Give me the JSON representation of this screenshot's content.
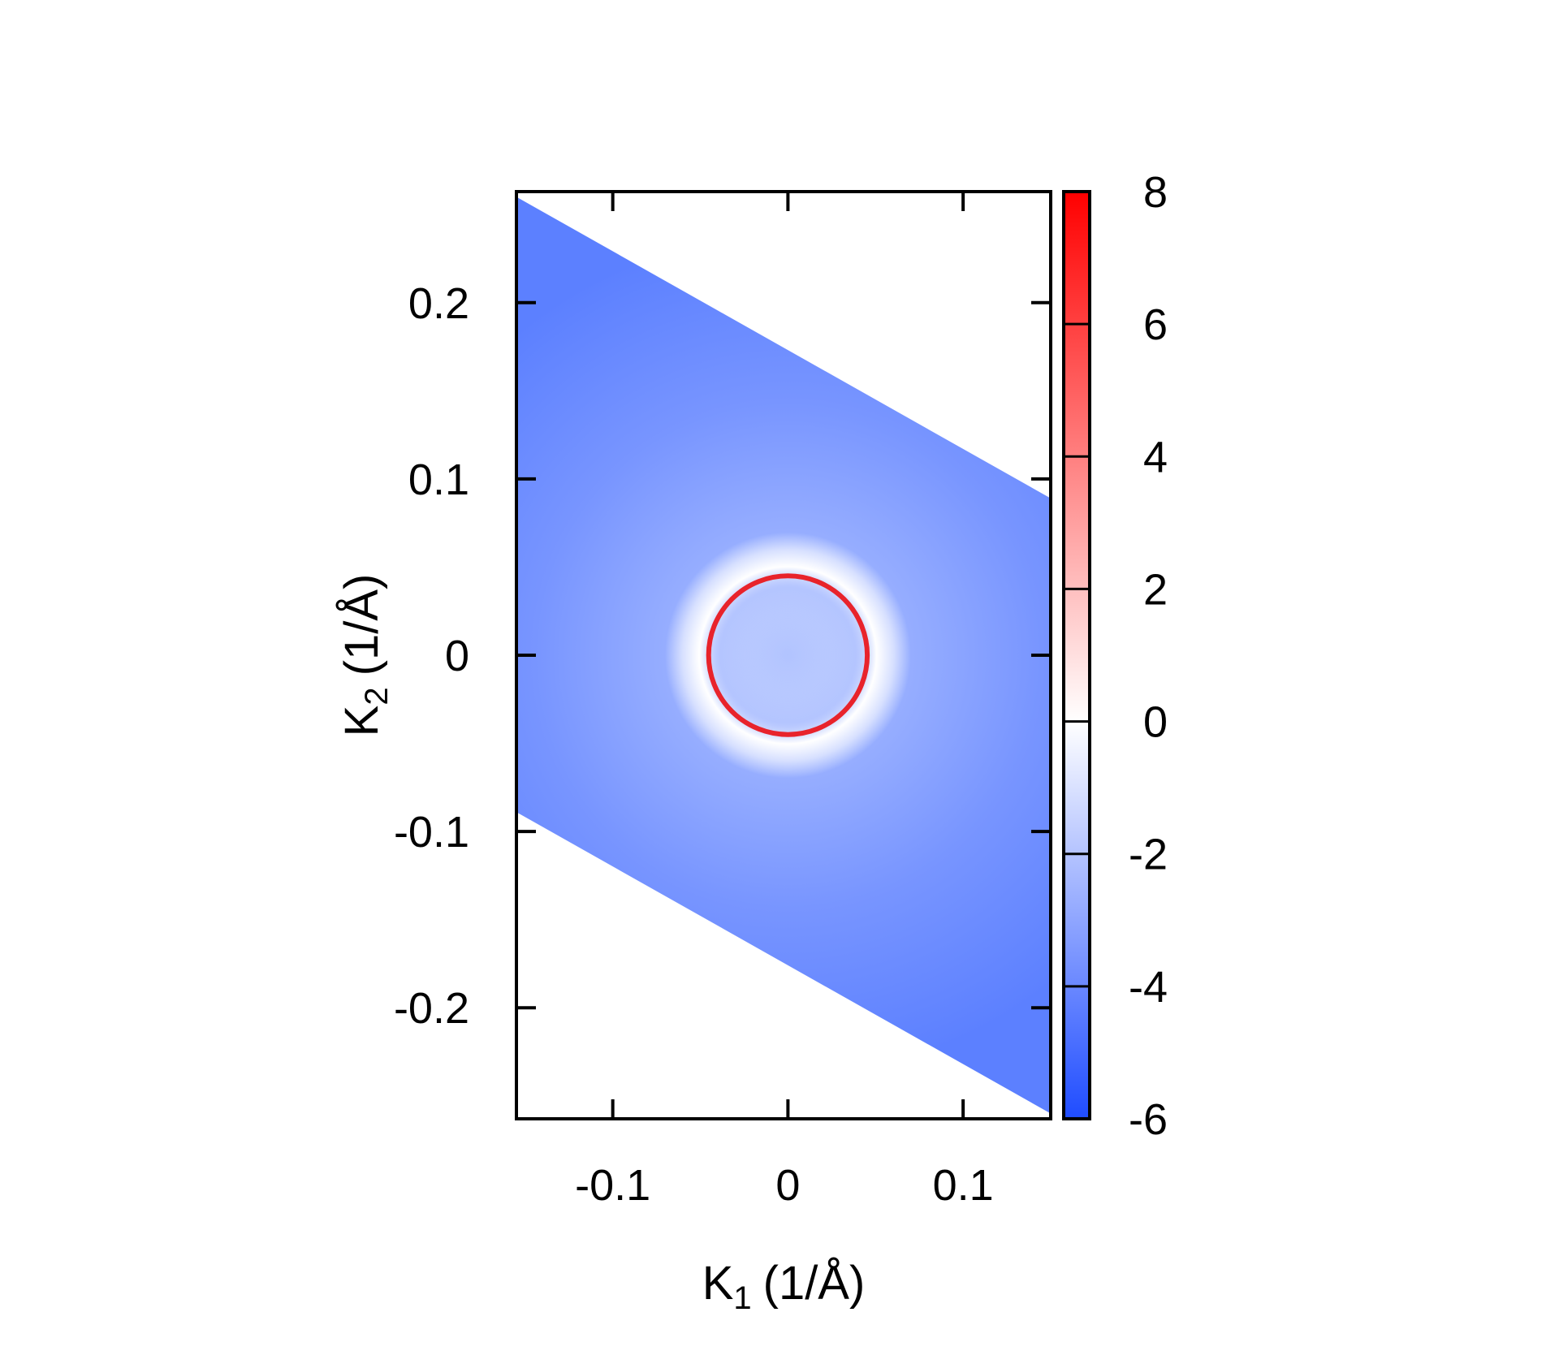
{
  "chart_data": {
    "type": "heatmap",
    "title": "",
    "xlabel": {
      "main": "K",
      "sub": "1",
      "unit": "(1/Å)"
    },
    "ylabel": {
      "main": "K",
      "sub": "2",
      "unit": "(1/Å)"
    },
    "xlim": [
      -0.155,
      0.15
    ],
    "ylim": [
      -0.263,
      0.263
    ],
    "xticks": [
      {
        "value": -0.1,
        "label": "-0.1"
      },
      {
        "value": 0,
        "label": "0"
      },
      {
        "value": 0.1,
        "label": "0.1"
      }
    ],
    "yticks": [
      {
        "value": 0.2,
        "label": "0.2"
      },
      {
        "value": 0.1,
        "label": "0.1"
      },
      {
        "value": 0,
        "label": "0"
      },
      {
        "value": -0.1,
        "label": "-0.1"
      },
      {
        "value": -0.2,
        "label": "-0.2"
      }
    ],
    "domain_polygon": [
      [
        -0.155,
        0.26
      ],
      [
        0.15,
        0.089
      ],
      [
        0.15,
        -0.26
      ],
      [
        -0.155,
        -0.089
      ]
    ],
    "features": {
      "ring_center": [
        0,
        0
      ],
      "ring_radius": 0.045,
      "ring_value": 8,
      "center_value": -1.5,
      "background_value": -3.8
    },
    "colorbar": {
      "min": -6,
      "max": 8,
      "ticks": [
        {
          "value": 8,
          "label": "8"
        },
        {
          "value": 6,
          "label": "6"
        },
        {
          "value": 4,
          "label": "4"
        },
        {
          "value": 2,
          "label": "2"
        },
        {
          "value": 0,
          "label": "0"
        },
        {
          "value": -2,
          "label": "-2"
        },
        {
          "value": -4,
          "label": "-4"
        },
        {
          "value": -6,
          "label": "-6"
        }
      ],
      "colors": {
        "low": "#1f4cff",
        "mid": "#ffffff",
        "high": "#ff0000"
      }
    },
    "grid": false,
    "legend": "none"
  }
}
